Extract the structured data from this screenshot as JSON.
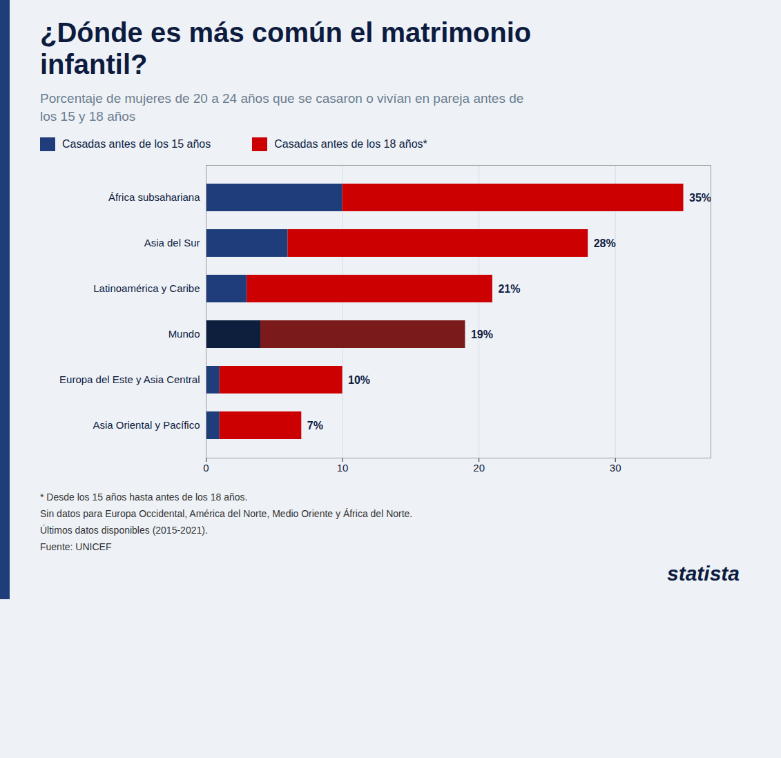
{
  "chart_data": {
    "type": "bar",
    "orientation": "horizontal",
    "stacked": true,
    "title": "¿Dónde es más común el matrimonio infantil?",
    "subtitle": "Porcentaje de mujeres de 20 a 24 años que se casaron o vivían en pareja antes de los 15 y 18 años",
    "categories": [
      "África subsahariana",
      "Asia del Sur",
      "Latinoamérica y Caribe",
      "Mundo",
      "Europa del Este y Asia Central",
      "Asia Oriental y Pacífico"
    ],
    "series": [
      {
        "name": "Casadas antes de los 15 años",
        "color": "#1f3d7a",
        "colors": [
          "#1f3d7a",
          "#1f3d7a",
          "#1f3d7a",
          "#0d1f3c",
          "#1f3d7a",
          "#1f3d7a"
        ],
        "values": [
          10,
          6,
          3,
          4,
          1,
          1
        ]
      },
      {
        "name": "Casadas antes de los 18 años*",
        "color": "#cc0000",
        "colors": [
          "#cc0000",
          "#cc0000",
          "#cc0000",
          "#7a1a1a",
          "#cc0000",
          "#cc0000"
        ],
        "values": [
          25,
          22,
          18,
          15,
          9,
          6
        ]
      }
    ],
    "totals": [
      35,
      28,
      21,
      19,
      10,
      7
    ],
    "total_labels": [
      "35%",
      "28%",
      "21%",
      "19%",
      "10%",
      "7%"
    ],
    "xlim": [
      0,
      37
    ],
    "xticks": [
      0,
      10,
      20,
      30
    ],
    "grid": true,
    "legend": "top",
    "footnotes": [
      "* Desde los 15 años hasta antes de los 18 años.",
      "Sin datos para Europa Occidental, América del Norte, Medio Oriente y África del Norte.",
      "Últimos datos disponibles (2015-2021).",
      "Fuente: UNICEF"
    ],
    "logo": "statista"
  }
}
